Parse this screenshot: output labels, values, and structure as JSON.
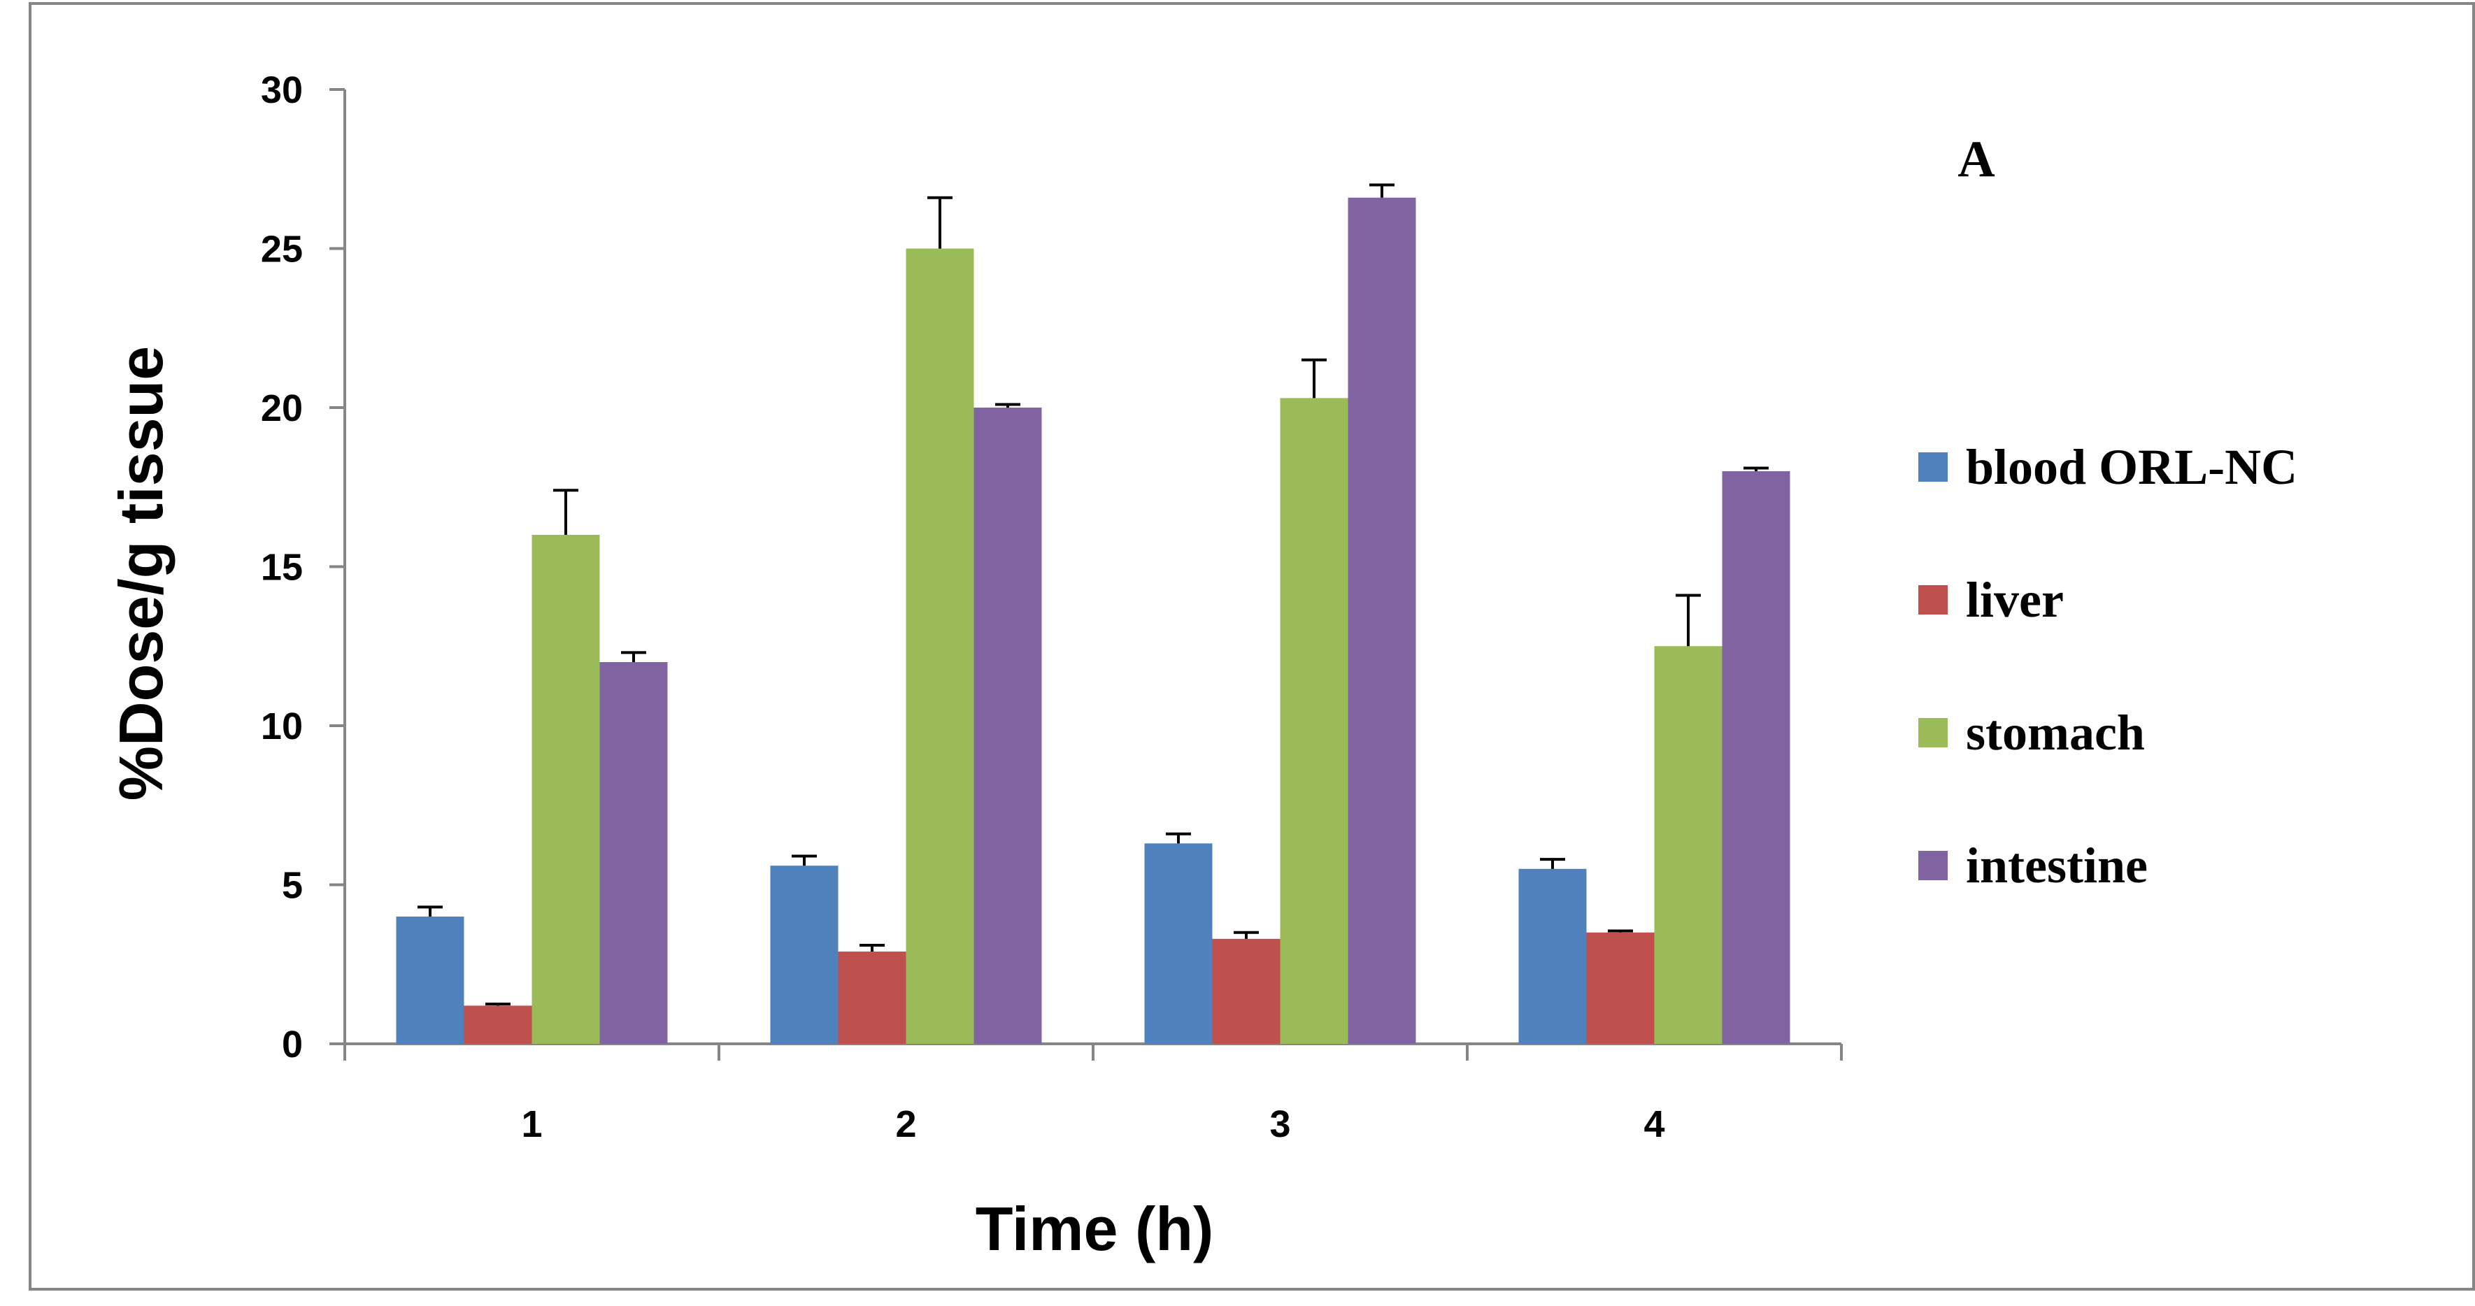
{
  "chart_data": {
    "type": "bar",
    "title": "",
    "panel_label": "A",
    "xlabel": "Time (h)",
    "ylabel": "%Dose/g tissue",
    "categories": [
      "1",
      "2",
      "3",
      "4"
    ],
    "ylim": [
      0,
      30
    ],
    "yticks": [
      0,
      5,
      10,
      15,
      20,
      25,
      30
    ],
    "grid": false,
    "legend_position": "right",
    "series": [
      {
        "name": "blood ORL-NC",
        "color": "#4f81bd",
        "values": [
          4.0,
          5.6,
          6.3,
          5.5
        ],
        "errors": [
          0.3,
          0.3,
          0.3,
          0.3
        ]
      },
      {
        "name": "liver",
        "color": "#c0504d",
        "values": [
          1.2,
          2.9,
          3.3,
          3.5
        ],
        "errors": [
          0.05,
          0.2,
          0.2,
          0.05
        ]
      },
      {
        "name": "stomach",
        "color": "#9bbb59",
        "values": [
          16.0,
          25.0,
          20.3,
          12.5
        ],
        "errors": [
          1.4,
          1.6,
          1.2,
          1.6
        ]
      },
      {
        "name": "intestine",
        "color": "#8064a2",
        "values": [
          12.0,
          20.0,
          26.6,
          18.0
        ],
        "errors": [
          0.3,
          0.1,
          0.4,
          0.1
        ]
      }
    ]
  }
}
